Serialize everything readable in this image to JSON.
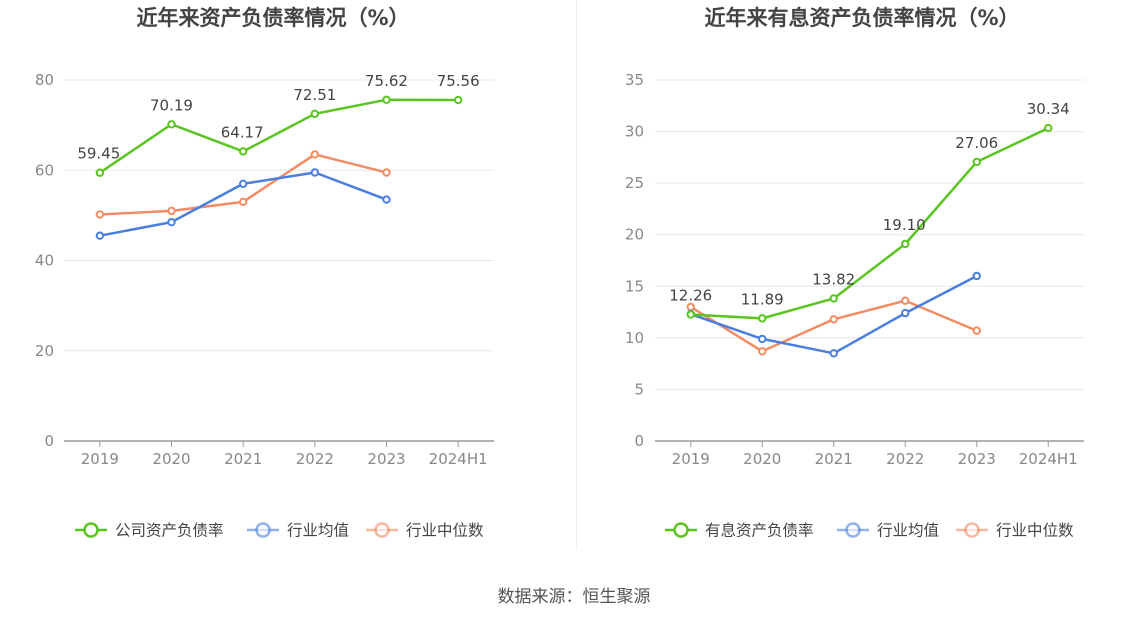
{
  "chart_data": [
    {
      "type": "line",
      "title": "近年来资产负债率情况（%）",
      "categories": [
        "2019",
        "2020",
        "2021",
        "2022",
        "2023",
        "2024H1"
      ],
      "ylim": [
        0,
        80
      ],
      "yticks": [
        0,
        20,
        40,
        60,
        80
      ],
      "grid": true,
      "legend_position": "bottom",
      "series": [
        {
          "name": "公司资产负债率",
          "color": "#5ac420",
          "values": [
            59.45,
            70.19,
            64.17,
            72.51,
            75.62,
            75.56
          ],
          "labels": [
            "59.45",
            "70.19",
            "64.17",
            "72.51",
            "75.62",
            "75.56"
          ]
        },
        {
          "name": "行业均值",
          "color": "#4a7fde",
          "values": [
            45.5,
            48.5,
            57.0,
            59.5,
            53.5,
            null
          ]
        },
        {
          "name": "行业中位数",
          "color": "#f28c64",
          "values": [
            50.2,
            51.0,
            53.0,
            63.5,
            59.5,
            null
          ]
        }
      ]
    },
    {
      "type": "line",
      "title": "近年来有息资产负债率情况（%）",
      "categories": [
        "2019",
        "2020",
        "2021",
        "2022",
        "2023",
        "2024H1"
      ],
      "ylim": [
        0,
        35
      ],
      "yticks": [
        0,
        5,
        10,
        15,
        20,
        25,
        30,
        35
      ],
      "grid": true,
      "legend_position": "bottom",
      "series": [
        {
          "name": "有息资产负债率",
          "color": "#5ac420",
          "values": [
            12.26,
            11.89,
            13.82,
            19.1,
            27.06,
            30.34
          ],
          "labels": [
            "12.26",
            "11.89",
            "13.82",
            "19.10",
            "27.06",
            "30.34"
          ]
        },
        {
          "name": "行业均值",
          "color": "#4a7fde",
          "values": [
            12.3,
            9.9,
            8.5,
            12.4,
            16.0,
            null
          ]
        },
        {
          "name": "行业中位数",
          "color": "#f28c64",
          "values": [
            13.0,
            8.7,
            11.8,
            13.6,
            10.7,
            null
          ]
        }
      ]
    }
  ],
  "footer": {
    "source": "数据来源：恒生聚源"
  }
}
